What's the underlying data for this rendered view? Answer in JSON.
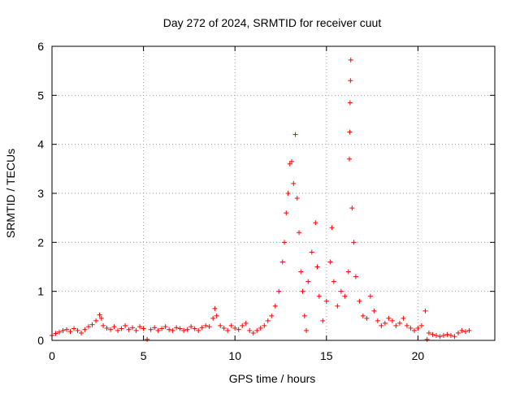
{
  "chart_data": {
    "type": "scatter",
    "title": "Day 272 of 2024, SRMTID for receiver cuut",
    "xlabel": "GPS time / hours",
    "ylabel": "SRMTID / TECUs",
    "xlim": [
      0,
      24.2
    ],
    "ylim": [
      0,
      6
    ],
    "xticks": [
      0,
      5,
      10,
      15,
      20
    ],
    "xtick_labels": [
      "0",
      "5",
      "10",
      "15",
      "20"
    ],
    "yticks": [
      0,
      1,
      2,
      3,
      4,
      5,
      6
    ],
    "ytick_labels": [
      "0",
      "1",
      "2",
      "3",
      "4",
      "5",
      "6"
    ],
    "grid": true,
    "marker": "+",
    "series": [
      {
        "name": "SRMTID",
        "color": "#ff0000",
        "points": [
          [
            0.0,
            0.1
          ],
          [
            0.2,
            0.14
          ],
          [
            0.4,
            0.17
          ],
          [
            0.6,
            0.2
          ],
          [
            0.8,
            0.22
          ],
          [
            1.0,
            0.18
          ],
          [
            1.2,
            0.24
          ],
          [
            1.4,
            0.2
          ],
          [
            1.6,
            0.15
          ],
          [
            1.8,
            0.22
          ],
          [
            2.0,
            0.28
          ],
          [
            2.2,
            0.32
          ],
          [
            2.4,
            0.4
          ],
          [
            2.6,
            0.52
          ],
          [
            2.7,
            0.45
          ],
          [
            2.8,
            0.3
          ],
          [
            3.0,
            0.25
          ],
          [
            3.2,
            0.22
          ],
          [
            3.4,
            0.28
          ],
          [
            3.6,
            0.2
          ],
          [
            3.8,
            0.24
          ],
          [
            4.0,
            0.3
          ],
          [
            4.2,
            0.22
          ],
          [
            4.4,
            0.26
          ],
          [
            4.6,
            0.2
          ],
          [
            4.8,
            0.28
          ],
          [
            5.0,
            0.24
          ],
          [
            5.2,
            0.02
          ],
          [
            5.4,
            0.22
          ],
          [
            5.6,
            0.26
          ],
          [
            5.8,
            0.2
          ],
          [
            6.0,
            0.24
          ],
          [
            6.2,
            0.28
          ],
          [
            6.4,
            0.22
          ],
          [
            6.6,
            0.2
          ],
          [
            6.8,
            0.26
          ],
          [
            7.0,
            0.24
          ],
          [
            7.2,
            0.2
          ],
          [
            7.4,
            0.22
          ],
          [
            7.6,
            0.28
          ],
          [
            7.8,
            0.24
          ],
          [
            8.0,
            0.2
          ],
          [
            8.2,
            0.26
          ],
          [
            8.4,
            0.3
          ],
          [
            8.6,
            0.28
          ],
          [
            8.8,
            0.45
          ],
          [
            8.9,
            0.65
          ],
          [
            9.0,
            0.5
          ],
          [
            9.2,
            0.3
          ],
          [
            9.4,
            0.25
          ],
          [
            9.6,
            0.2
          ],
          [
            9.8,
            0.3
          ],
          [
            10.0,
            0.25
          ],
          [
            10.2,
            0.22
          ],
          [
            10.4,
            0.3
          ],
          [
            10.6,
            0.35
          ],
          [
            10.8,
            0.2
          ],
          [
            11.0,
            0.15
          ],
          [
            11.2,
            0.2
          ],
          [
            11.4,
            0.25
          ],
          [
            11.6,
            0.3
          ],
          [
            11.8,
            0.4
          ],
          [
            12.0,
            0.5
          ],
          [
            12.2,
            0.7
          ],
          [
            12.4,
            1.0
          ],
          [
            12.6,
            1.6
          ],
          [
            12.7,
            2.0
          ],
          [
            12.8,
            2.6
          ],
          [
            12.9,
            3.0
          ],
          [
            13.0,
            3.6
          ],
          [
            13.1,
            3.65
          ],
          [
            13.2,
            3.2
          ],
          [
            13.3,
            4.2
          ],
          [
            13.4,
            2.9
          ],
          [
            13.5,
            2.2
          ],
          [
            13.6,
            1.4
          ],
          [
            13.7,
            1.0
          ],
          [
            13.8,
            0.5
          ],
          [
            13.9,
            0.2
          ],
          [
            14.0,
            1.2
          ],
          [
            14.2,
            1.8
          ],
          [
            14.4,
            2.4
          ],
          [
            14.5,
            1.5
          ],
          [
            14.6,
            0.9
          ],
          [
            14.8,
            0.4
          ],
          [
            15.0,
            0.8
          ],
          [
            15.2,
            1.6
          ],
          [
            15.3,
            2.3
          ],
          [
            15.4,
            1.2
          ],
          [
            15.6,
            0.7
          ],
          [
            15.8,
            1.0
          ],
          [
            16.0,
            0.9
          ],
          [
            16.2,
            1.4
          ],
          [
            16.25,
            3.7
          ],
          [
            16.27,
            4.25
          ],
          [
            16.29,
            4.85
          ],
          [
            16.31,
            5.3
          ],
          [
            16.33,
            5.72
          ],
          [
            16.4,
            2.7
          ],
          [
            16.5,
            2.0
          ],
          [
            16.6,
            1.3
          ],
          [
            16.8,
            0.8
          ],
          [
            17.0,
            0.5
          ],
          [
            17.2,
            0.45
          ],
          [
            17.4,
            0.9
          ],
          [
            17.6,
            0.6
          ],
          [
            17.8,
            0.4
          ],
          [
            18.0,
            0.3
          ],
          [
            18.2,
            0.35
          ],
          [
            18.4,
            0.45
          ],
          [
            18.6,
            0.4
          ],
          [
            18.8,
            0.3
          ],
          [
            19.0,
            0.35
          ],
          [
            19.2,
            0.45
          ],
          [
            19.4,
            0.3
          ],
          [
            19.6,
            0.25
          ],
          [
            19.8,
            0.2
          ],
          [
            20.0,
            0.25
          ],
          [
            20.2,
            0.3
          ],
          [
            20.4,
            0.6
          ],
          [
            20.5,
            0.02
          ],
          [
            20.6,
            0.15
          ],
          [
            20.8,
            0.12
          ],
          [
            21.0,
            0.1
          ],
          [
            21.2,
            0.08
          ],
          [
            21.4,
            0.1
          ],
          [
            21.6,
            0.12
          ],
          [
            21.8,
            0.1
          ],
          [
            22.0,
            0.08
          ],
          [
            22.2,
            0.15
          ],
          [
            22.4,
            0.2
          ],
          [
            22.6,
            0.18
          ],
          [
            22.8,
            0.2
          ]
        ]
      }
    ]
  }
}
